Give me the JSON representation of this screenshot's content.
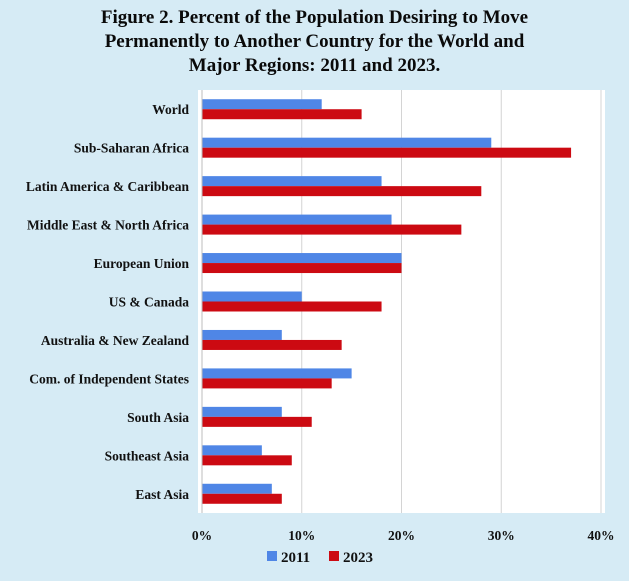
{
  "chart_data": {
    "type": "bar",
    "orientation": "horizontal",
    "title": "Figure 2.  Percent of the Population Desiring to Move\nPermanently to Another Country for the World and\nMajor Regions: 2011 and 2023.",
    "categories": [
      "World",
      "Sub-Saharan Africa",
      "Latin America & Caribbean",
      "Middle East & North Africa",
      "European Union",
      "US & Canada",
      "Australia & New Zealand",
      "Com. of Independent States",
      "South Asia",
      "Southeast Asia",
      "East Asia"
    ],
    "series": [
      {
        "name": "2011",
        "color": "#4f86e6",
        "values": [
          12,
          29,
          18,
          19,
          20,
          10,
          8,
          15,
          8,
          6,
          7
        ]
      },
      {
        "name": "2023",
        "color": "#cc0a12",
        "values": [
          16,
          37,
          28,
          26,
          20,
          18,
          14,
          13,
          11,
          9,
          8
        ]
      }
    ],
    "xlim": [
      0,
      40
    ],
    "xticks": [
      0,
      10,
      20,
      30,
      40
    ],
    "xtick_labels": [
      "0%",
      "10%",
      "20%",
      "30%",
      "40%"
    ],
    "xlabel": "",
    "ylabel": "",
    "grid": true,
    "legend_position": "bottom"
  }
}
